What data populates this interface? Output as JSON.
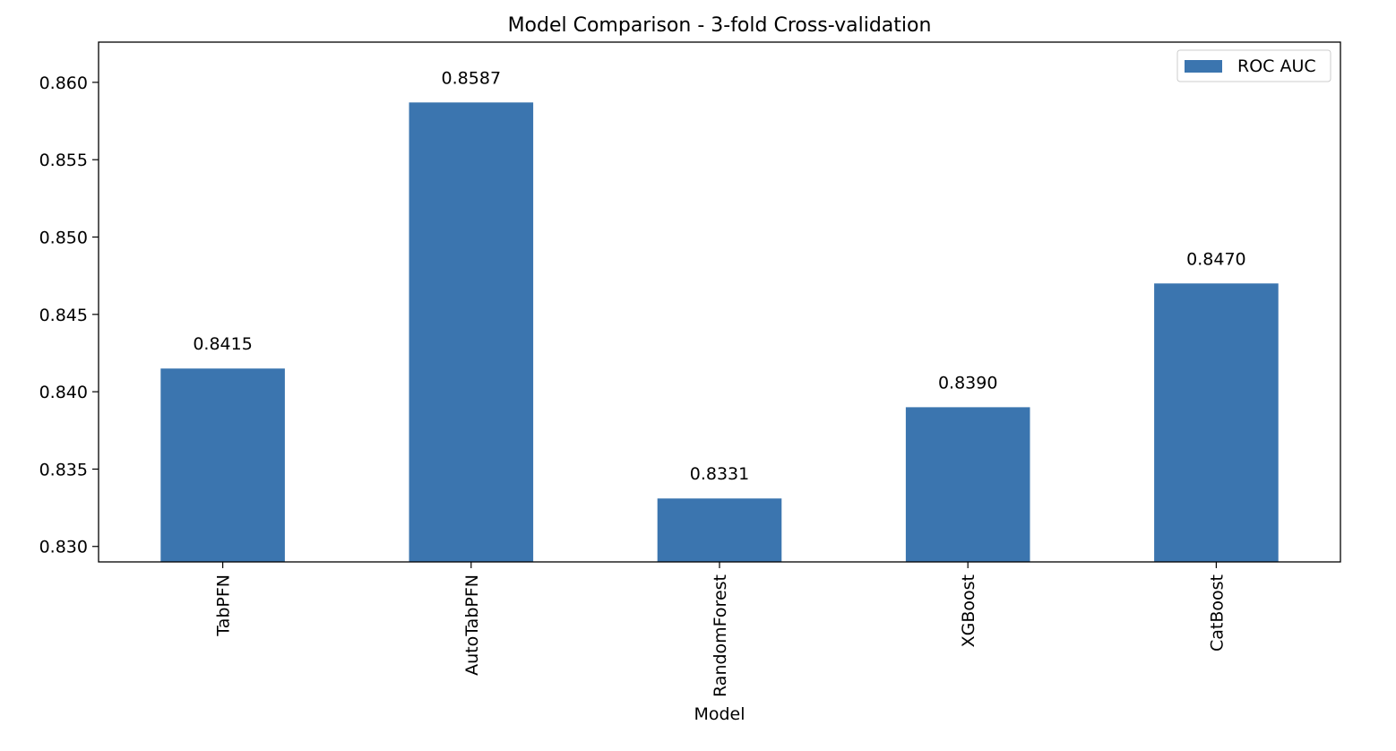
{
  "chart_data": {
    "type": "bar",
    "title": "Model Comparison - 3-fold Cross-validation",
    "xlabel": "Model",
    "ylabel": "",
    "categories": [
      "TabPFN",
      "AutoTabPFN",
      "RandomForest",
      "XGBoost",
      "CatBoost"
    ],
    "series": [
      {
        "name": "ROC AUC",
        "values": [
          0.8415,
          0.8587,
          0.8331,
          0.839,
          0.847
        ],
        "labels": [
          "0.8415",
          "0.8587",
          "0.8331",
          "0.8390",
          "0.8470"
        ],
        "color": "#3b75af"
      }
    ],
    "ylim": [
      0.829,
      0.8626
    ],
    "yticks": [
      0.83,
      0.835,
      0.84,
      0.845,
      0.85,
      0.855,
      0.86
    ],
    "ytick_labels": [
      "0.830",
      "0.835",
      "0.840",
      "0.845",
      "0.850",
      "0.855",
      "0.860"
    ],
    "grid": false,
    "legend_position": "top-right"
  }
}
